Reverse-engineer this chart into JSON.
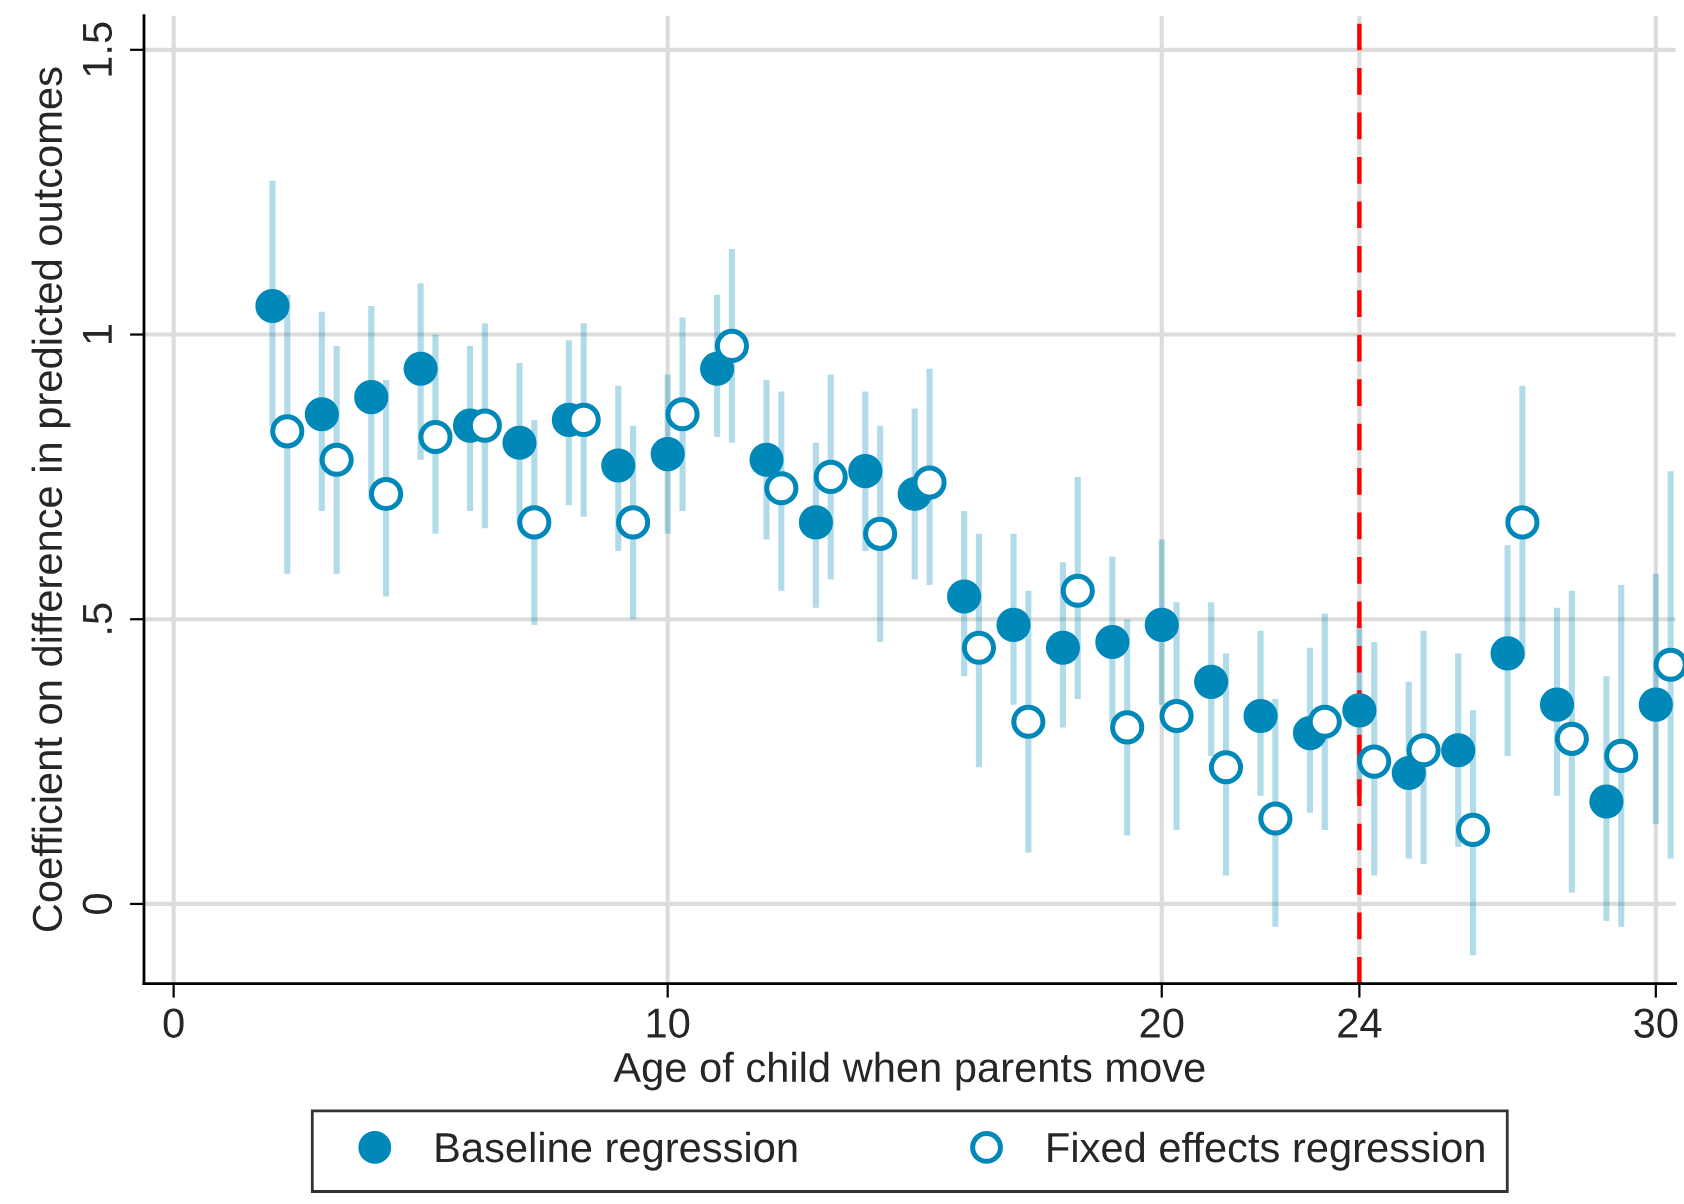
{
  "chart_data": {
    "type": "scatter",
    "xlabel": "Age of child when parents move",
    "ylabel": "Coefficient on difference in predicted outcomes",
    "xlim": [
      -0.6,
      30.4
    ],
    "xticks": [
      0,
      10,
      20,
      24,
      30
    ],
    "ylim": [
      -0.14,
      1.56
    ],
    "yticks": [
      0,
      {
        "value": 0.5,
        "label": ".5"
      },
      1,
      1.5
    ],
    "grid": true,
    "legend": "bottom",
    "ref_lines": [
      {
        "axis": "x",
        "value": 24,
        "color": "#ff0000",
        "line_style": "dashed"
      }
    ],
    "series": [
      {
        "name": "Baseline regression",
        "color": "#0088b9",
        "marker": "circle",
        "x": [
          2,
          3,
          4,
          5,
          6,
          7,
          8,
          9,
          10,
          11,
          12,
          13,
          14,
          15,
          16,
          17,
          18,
          19,
          20,
          21,
          22,
          23,
          24,
          25,
          26,
          27,
          28,
          29,
          30
        ],
        "values": [
          1.05,
          0.86,
          0.89,
          0.94,
          0.84,
          0.81,
          0.85,
          0.77,
          0.79,
          0.94,
          0.78,
          0.67,
          0.76,
          0.72,
          0.54,
          0.49,
          0.45,
          0.46,
          0.49,
          0.39,
          0.33,
          0.3,
          0.34,
          0.23,
          0.27,
          0.44,
          0.35,
          0.18,
          0.35
        ],
        "errors": [
          [
            0.84,
            1.27
          ],
          [
            0.69,
            1.04
          ],
          [
            0.71,
            1.05
          ],
          [
            0.78,
            1.09
          ],
          [
            0.69,
            0.98
          ],
          [
            0.67,
            0.95
          ],
          [
            0.7,
            0.99
          ],
          [
            0.62,
            0.91
          ],
          [
            0.65,
            0.93
          ],
          [
            0.82,
            1.07
          ],
          [
            0.64,
            0.92
          ],
          [
            0.52,
            0.81
          ],
          [
            0.62,
            0.9
          ],
          [
            0.57,
            0.87
          ],
          [
            0.4,
            0.69
          ],
          [
            0.35,
            0.65
          ],
          [
            0.31,
            0.6
          ],
          [
            0.32,
            0.61
          ],
          [
            0.35,
            0.64
          ],
          [
            0.26,
            0.53
          ],
          [
            0.19,
            0.48
          ],
          [
            0.16,
            0.45
          ],
          [
            0.19,
            0.49
          ],
          [
            0.08,
            0.39
          ],
          [
            0.1,
            0.44
          ],
          [
            0.26,
            0.63
          ],
          [
            0.19,
            0.52
          ],
          [
            -0.03,
            0.4
          ],
          [
            0.14,
            0.58
          ]
        ]
      },
      {
        "name": "Fixed effects regression",
        "color": "#0088b9",
        "marker": "circle-open",
        "x": [
          2.3,
          3.3,
          4.3,
          5.3,
          6.3,
          7.3,
          8.3,
          9.3,
          10.3,
          11.3,
          12.3,
          13.3,
          14.3,
          15.3,
          16.3,
          17.3,
          18.3,
          19.3,
          20.3,
          21.3,
          22.3,
          23.3,
          24.3,
          25.3,
          26.3,
          27.3,
          28.3,
          29.3,
          30.3
        ],
        "values": [
          0.83,
          0.78,
          0.72,
          0.82,
          0.84,
          0.67,
          0.85,
          0.67,
          0.86,
          0.98,
          0.73,
          0.75,
          0.65,
          0.74,
          0.45,
          0.32,
          0.55,
          0.31,
          0.33,
          0.24,
          0.15,
          0.32,
          0.25,
          0.27,
          0.13,
          0.67,
          0.29,
          0.26,
          0.42
        ],
        "errors": [
          [
            0.58,
            1.07
          ],
          [
            0.58,
            0.98
          ],
          [
            0.54,
            0.92
          ],
          [
            0.65,
            1.0
          ],
          [
            0.66,
            1.02
          ],
          [
            0.49,
            0.85
          ],
          [
            0.68,
            1.02
          ],
          [
            0.5,
            0.84
          ],
          [
            0.69,
            1.03
          ],
          [
            0.81,
            1.15
          ],
          [
            0.55,
            0.9
          ],
          [
            0.57,
            0.93
          ],
          [
            0.46,
            0.84
          ],
          [
            0.56,
            0.94
          ],
          [
            0.24,
            0.65
          ],
          [
            0.09,
            0.55
          ],
          [
            0.36,
            0.75
          ],
          [
            0.12,
            0.5
          ],
          [
            0.13,
            0.53
          ],
          [
            0.05,
            0.44
          ],
          [
            -0.04,
            0.36
          ],
          [
            0.13,
            0.51
          ],
          [
            0.05,
            0.46
          ],
          [
            0.07,
            0.48
          ],
          [
            -0.09,
            0.34
          ],
          [
            0.43,
            0.91
          ],
          [
            0.02,
            0.55
          ],
          [
            -0.04,
            0.56
          ],
          [
            0.08,
            0.76
          ]
        ]
      }
    ]
  }
}
